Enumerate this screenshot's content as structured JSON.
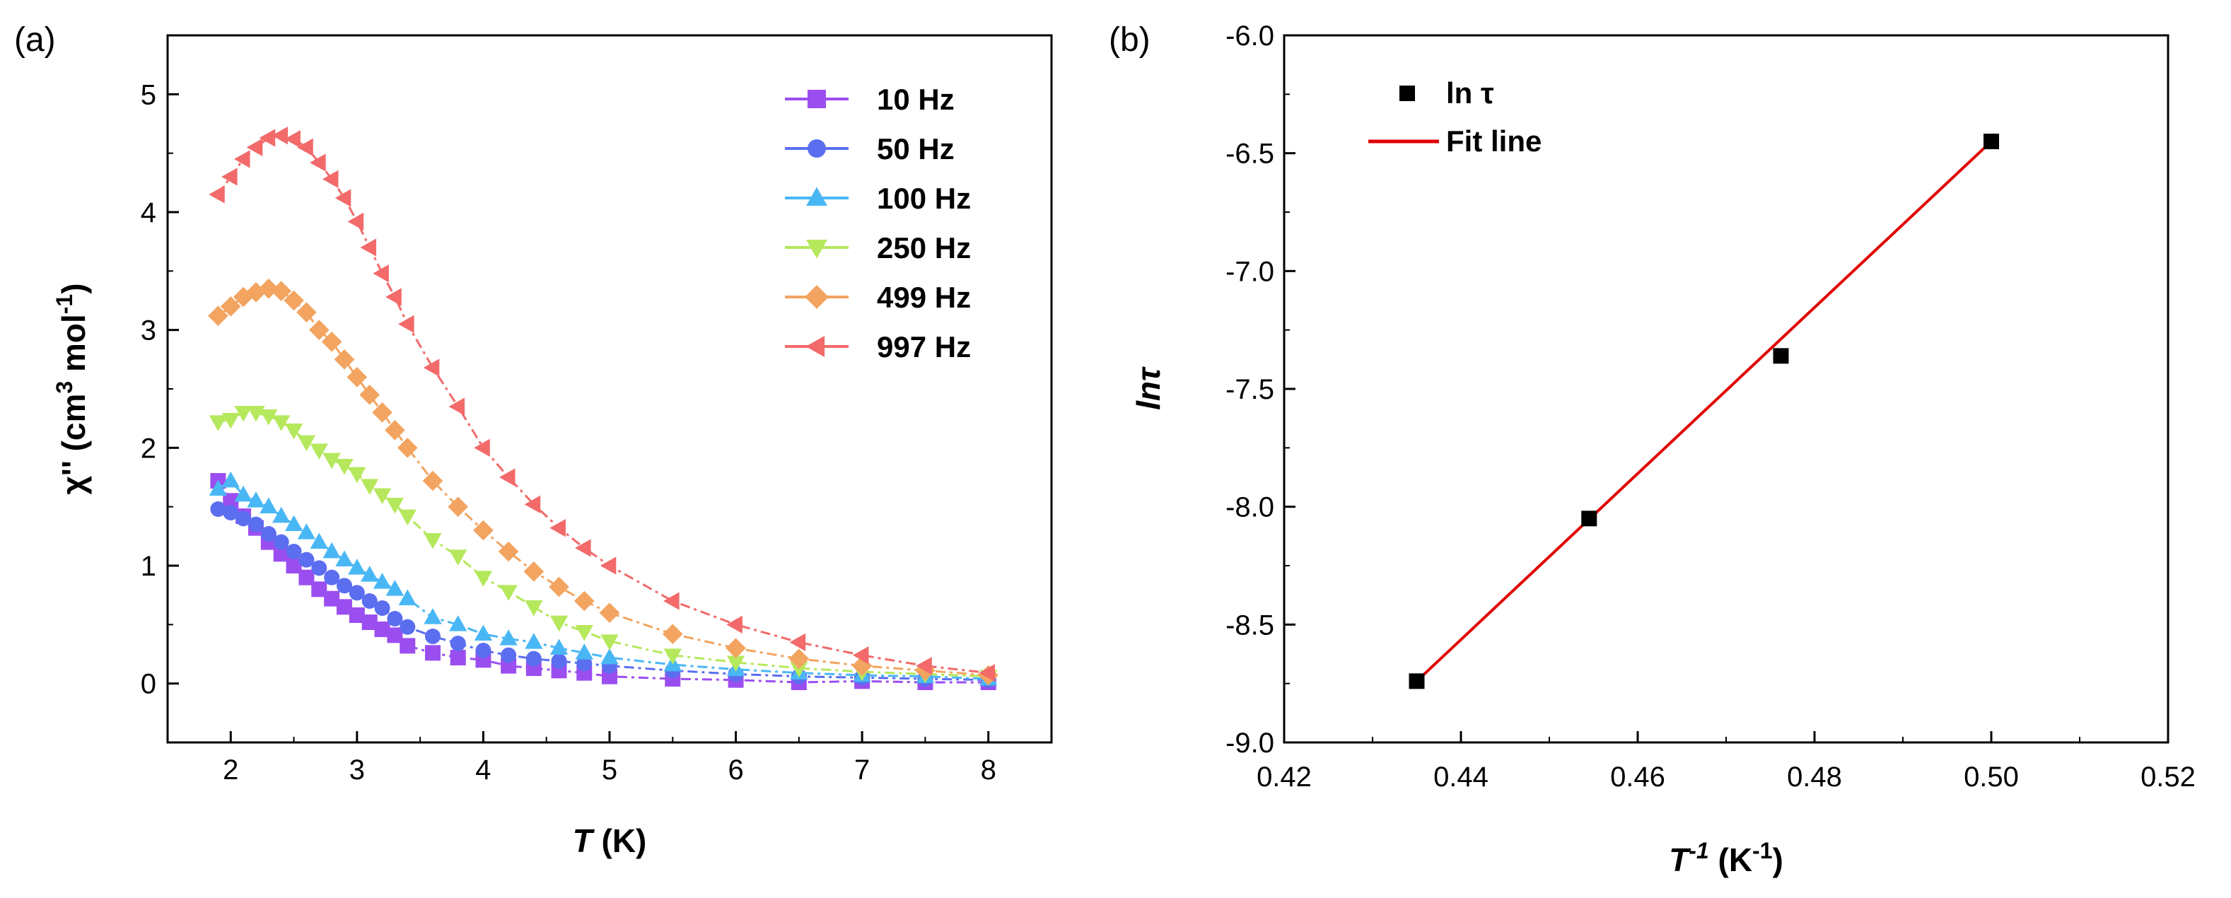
{
  "chart_data": [
    {
      "panel_label": "(a)",
      "type": "line",
      "xlabel_var": "T",
      "xlabel_unit": " (K)",
      "ylabel": "χ″ (cm³ mol⁻¹)",
      "ylabel_parts": {
        "main": "χ'' (cm",
        "sup1": "3",
        "mid": " mol",
        "sup2": "-1",
        "end": ")"
      },
      "xlim": [
        1.5,
        8.5
      ],
      "ylim": [
        -0.5,
        5.5
      ],
      "xticks": [
        "2",
        "3",
        "4",
        "5",
        "6",
        "7",
        "8"
      ],
      "yticks": [
        "0",
        "1",
        "2",
        "3",
        "4",
        "5"
      ],
      "x": [
        1.9,
        2.0,
        2.1,
        2.2,
        2.3,
        2.4,
        2.5,
        2.6,
        2.7,
        2.8,
        2.9,
        3.0,
        3.1,
        3.2,
        3.3,
        3.4,
        3.6,
        3.8,
        4.0,
        4.2,
        4.4,
        4.6,
        4.8,
        5.0,
        5.5,
        6.0,
        6.5,
        7.0,
        7.5,
        8.0
      ],
      "series": [
        {
          "name": "10 Hz",
          "color": "#9b4ef0",
          "marker": "square",
          "values": [
            1.72,
            1.55,
            1.42,
            1.32,
            1.2,
            1.1,
            1.0,
            0.9,
            0.8,
            0.72,
            0.65,
            0.58,
            0.52,
            0.46,
            0.41,
            0.32,
            0.26,
            0.22,
            0.2,
            0.15,
            0.13,
            0.11,
            0.09,
            0.06,
            0.04,
            0.03,
            0.01,
            0.02,
            0.01,
            0.01
          ]
        },
        {
          "name": "50 Hz",
          "color": "#5b6ef0",
          "marker": "circle",
          "values": [
            1.48,
            1.45,
            1.4,
            1.35,
            1.27,
            1.2,
            1.12,
            1.05,
            0.98,
            0.9,
            0.83,
            0.77,
            0.7,
            0.64,
            0.55,
            0.48,
            0.4,
            0.34,
            0.28,
            0.24,
            0.21,
            0.19,
            0.17,
            0.15,
            0.11,
            0.08,
            0.06,
            0.05,
            0.04,
            0.03
          ]
        },
        {
          "name": "100 Hz",
          "color": "#4ab7f5",
          "marker": "triangle-up",
          "values": [
            1.65,
            1.72,
            1.6,
            1.55,
            1.5,
            1.42,
            1.35,
            1.28,
            1.2,
            1.12,
            1.05,
            0.98,
            0.92,
            0.86,
            0.8,
            0.72,
            0.56,
            0.5,
            0.42,
            0.38,
            0.35,
            0.3,
            0.26,
            0.22,
            0.16,
            0.12,
            0.09,
            0.07,
            0.06,
            0.04
          ]
        },
        {
          "name": "250 Hz",
          "color": "#b5e85c",
          "marker": "triangle-down",
          "values": [
            2.22,
            2.24,
            2.3,
            2.3,
            2.27,
            2.22,
            2.15,
            2.05,
            1.98,
            1.9,
            1.85,
            1.78,
            1.68,
            1.6,
            1.52,
            1.42,
            1.22,
            1.08,
            0.9,
            0.78,
            0.65,
            0.52,
            0.44,
            0.36,
            0.24,
            0.18,
            0.13,
            0.1,
            0.08,
            0.06
          ]
        },
        {
          "name": "499 Hz",
          "color": "#f2a460",
          "marker": "diamond",
          "values": [
            3.12,
            3.2,
            3.28,
            3.32,
            3.35,
            3.33,
            3.25,
            3.15,
            3.0,
            2.9,
            2.75,
            2.6,
            2.45,
            2.3,
            2.15,
            2.0,
            1.72,
            1.5,
            1.3,
            1.12,
            0.95,
            0.82,
            0.7,
            0.6,
            0.42,
            0.3,
            0.21,
            0.15,
            0.11,
            0.07
          ]
        },
        {
          "name": "997 Hz",
          "color": "#f26a6a",
          "marker": "triangle-left",
          "values": [
            4.15,
            4.3,
            4.45,
            4.55,
            4.63,
            4.65,
            4.62,
            4.55,
            4.42,
            4.28,
            4.12,
            3.92,
            3.7,
            3.48,
            3.28,
            3.05,
            2.68,
            2.35,
            2.0,
            1.75,
            1.52,
            1.32,
            1.15,
            1.0,
            0.7,
            0.5,
            0.35,
            0.24,
            0.15,
            0.09
          ]
        }
      ]
    },
    {
      "panel_label": "(b)",
      "type": "scatter",
      "xlabel": "T⁻¹ (K⁻¹)",
      "xlabel_parts": {
        "var": "T",
        "sup": "-1",
        "unit": " (K",
        "unitsup": "-1",
        "end": ")"
      },
      "ylabel": "lnτ",
      "xlim": [
        0.42,
        0.52
      ],
      "ylim": [
        -9.0,
        -6.0
      ],
      "xticks": [
        "0.42",
        "0.44",
        "0.46",
        "0.48",
        "0.50",
        "0.52"
      ],
      "yticks": [
        "-9.0",
        "-8.5",
        "-8.0",
        "-7.5",
        "-7.0",
        "-6.5",
        "-6.0"
      ],
      "series": [
        {
          "name": "ln τ",
          "color": "#000000",
          "marker": "square",
          "x": [
            0.435,
            0.4545,
            0.4762,
            0.5
          ],
          "y": [
            -8.74,
            -8.05,
            -7.36,
            -6.45
          ]
        },
        {
          "name": "Fit line",
          "color": "#e00000",
          "type": "line",
          "x": [
            0.435,
            0.5
          ],
          "y": [
            -8.74,
            -6.45
          ]
        }
      ]
    }
  ]
}
